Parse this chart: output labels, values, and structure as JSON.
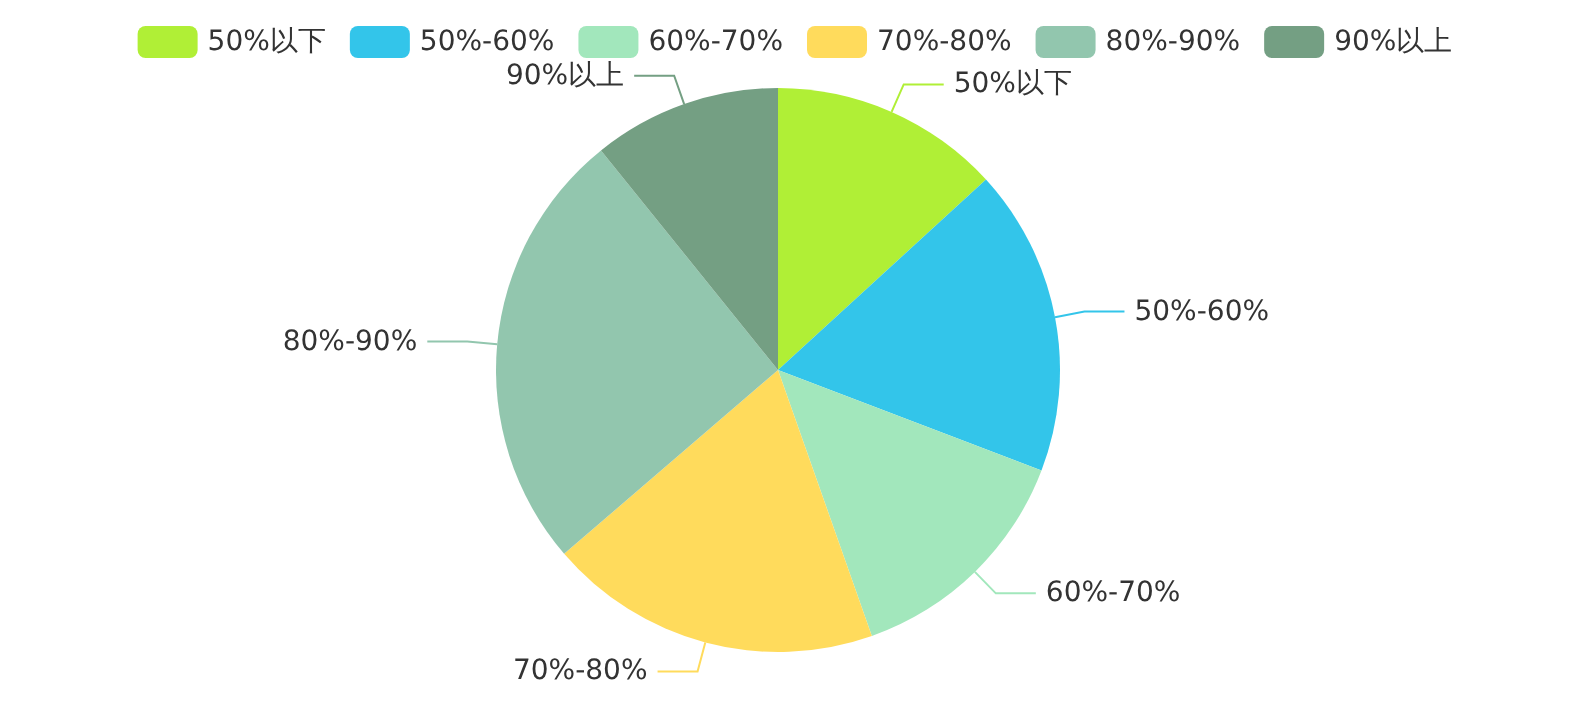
{
  "chart_data": {
    "type": "pie",
    "categories": [
      "50%以下",
      "50%-60%",
      "60%-70%",
      "70%-80%",
      "80%-90%",
      "90%以上"
    ],
    "values": [
      13.2,
      17.6,
      13.8,
      19.1,
      25.5,
      10.8
    ],
    "colors": [
      "#b0ef36",
      "#33c5ea",
      "#a2e7bc",
      "#ffdb5c",
      "#92c6ae",
      "#749f83"
    ],
    "legend": "top"
  }
}
